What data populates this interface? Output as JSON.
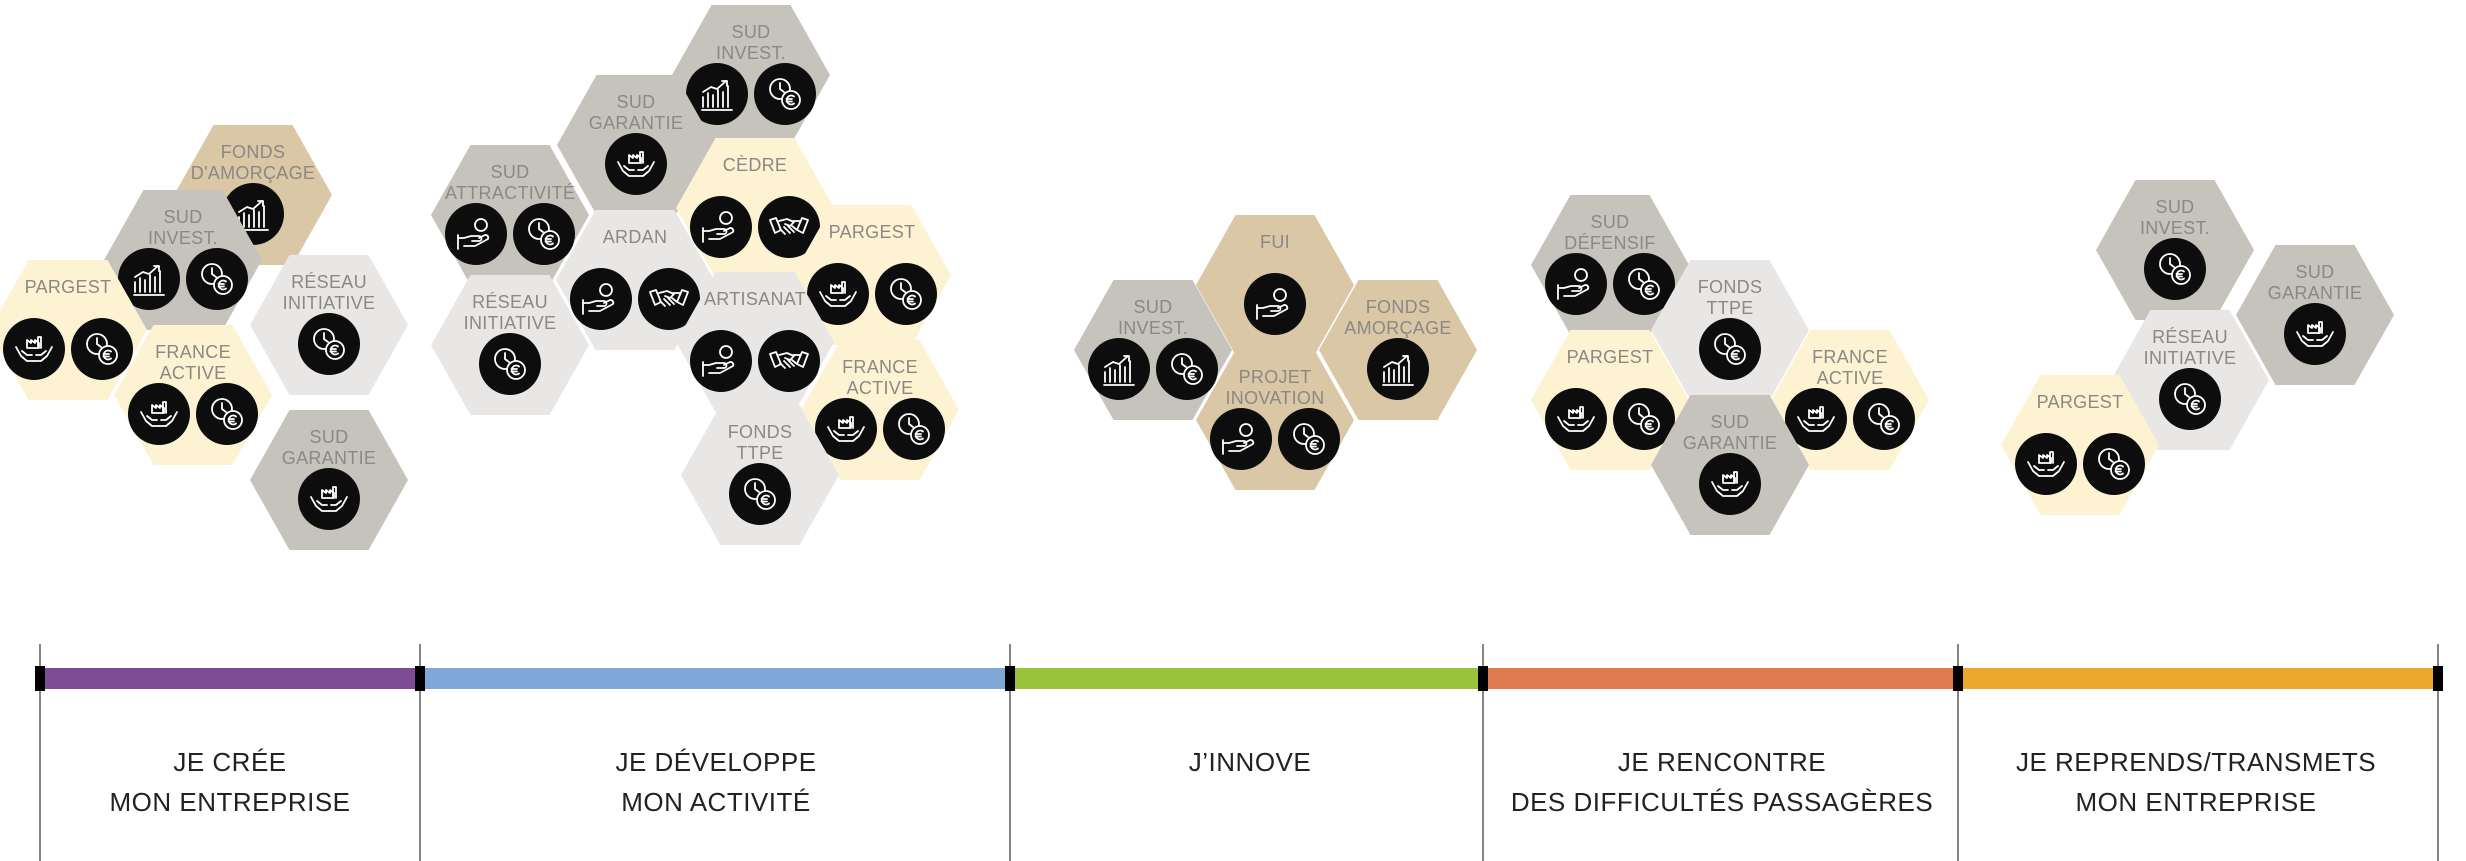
{
  "colors": {
    "cream": "#fdf3d3",
    "gray": "#c6c2bc",
    "light": "#e9e7e5",
    "tan": "#d9c7a6",
    "icon_bg": "#0d0d0d"
  },
  "phases": [
    {
      "label": "JE CRÉE\nMON ENTREPRISE",
      "color": "#7e4b95"
    },
    {
      "label": "JE DÉVELOPPE\nMON ACTIVITÉ",
      "color": "#7fa8d8"
    },
    {
      "label": "J’INNOVE",
      "color": "#9ac33c"
    },
    {
      "label": "JE RENCONTRE\nDES DIFFICULTÉS PASSAGÈRES",
      "color": "#e07a4e"
    },
    {
      "label": "JE REPRENDS/TRANSMETS\nMON ENTREPRISE",
      "color": "#eba82d"
    }
  ],
  "icon_types": {
    "chart": "growth-chart-icon",
    "euro": "clock-euro-icon",
    "hands": "hands-factory-icon",
    "handshake": "handshake-icon",
    "coin": "hand-coin-icon"
  },
  "groups": [
    {
      "phase": "creation",
      "items": [
        {
          "label": "FONDS\nD'AMORÇAGE",
          "color": "tan",
          "icons": [
            "chart"
          ]
        },
        {
          "label": "SUD\nINVEST.",
          "color": "gray",
          "icons": [
            "chart",
            "euro"
          ]
        },
        {
          "label": "RÉSEAU\nINITIATIVE",
          "color": "light",
          "icons": [
            "euro"
          ]
        },
        {
          "label": "PARGEST",
          "color": "cream",
          "icons": [
            "hands",
            "euro"
          ]
        },
        {
          "label": "FRANCE\nACTIVE",
          "color": "cream",
          "icons": [
            "hands",
            "euro"
          ]
        },
        {
          "label": "SUD\nGARANTIE",
          "color": "gray",
          "icons": [
            "hands"
          ]
        }
      ]
    },
    {
      "phase": "developpement",
      "items": [
        {
          "label": "SUD\nINVEST.",
          "color": "gray",
          "icons": [
            "chart",
            "euro"
          ]
        },
        {
          "label": "SUD\nGARANTIE",
          "color": "gray",
          "icons": [
            "hands"
          ]
        },
        {
          "label": "SUD\nATTRACTIVITÉ",
          "color": "gray",
          "icons": [
            "coin",
            "euro"
          ]
        },
        {
          "label": "CÈDRE",
          "color": "cream",
          "icons": [
            "coin",
            "handshake"
          ]
        },
        {
          "label": "ARDAN",
          "color": "light",
          "icons": [
            "coin",
            "handshake"
          ]
        },
        {
          "label": "PARGEST",
          "color": "cream",
          "icons": [
            "hands",
            "euro"
          ]
        },
        {
          "label": "RÉSEAU\nINITIATIVE",
          "color": "light",
          "icons": [
            "euro"
          ]
        },
        {
          "label": "ARTISANAT",
          "color": "light",
          "icons": [
            "coin",
            "handshake"
          ]
        },
        {
          "label": "FRANCE\nACTIVE",
          "color": "cream",
          "icons": [
            "hands",
            "euro"
          ]
        },
        {
          "label": "FONDS\nTTPE",
          "color": "light",
          "icons": [
            "euro"
          ]
        }
      ]
    },
    {
      "phase": "innovation",
      "items": [
        {
          "label": "FUI",
          "color": "tan",
          "icons": [
            "coin"
          ]
        },
        {
          "label": "SUD\nINVEST.",
          "color": "gray",
          "icons": [
            "chart",
            "euro"
          ]
        },
        {
          "label": "FONDS\nAMORÇAGE",
          "color": "tan",
          "icons": [
            "chart"
          ]
        },
        {
          "label": "PROJET\nINOVATION",
          "color": "tan",
          "icons": [
            "coin",
            "euro"
          ]
        }
      ]
    },
    {
      "phase": "difficultes",
      "items": [
        {
          "label": "SUD\nDÉFENSIF",
          "color": "gray",
          "icons": [
            "coin",
            "euro"
          ]
        },
        {
          "label": "FONDS\nTTPE",
          "color": "light",
          "icons": [
            "euro"
          ]
        },
        {
          "label": "PARGEST",
          "color": "cream",
          "icons": [
            "hands",
            "euro"
          ]
        },
        {
          "label": "FRANCE\nACTIVE",
          "color": "cream",
          "icons": [
            "hands",
            "euro"
          ]
        },
        {
          "label": "SUD\nGARANTIE",
          "color": "gray",
          "icons": [
            "hands"
          ]
        }
      ]
    },
    {
      "phase": "transmission",
      "items": [
        {
          "label": "SUD\nINVEST.",
          "color": "gray",
          "icons": [
            "euro"
          ]
        },
        {
          "label": "SUD\nGARANTIE",
          "color": "gray",
          "icons": [
            "hands"
          ]
        },
        {
          "label": "RÉSEAU\nINITIATIVE",
          "color": "light",
          "icons": [
            "euro"
          ]
        },
        {
          "label": "PARGEST",
          "color": "cream",
          "icons": [
            "hands",
            "euro"
          ]
        }
      ]
    }
  ]
}
